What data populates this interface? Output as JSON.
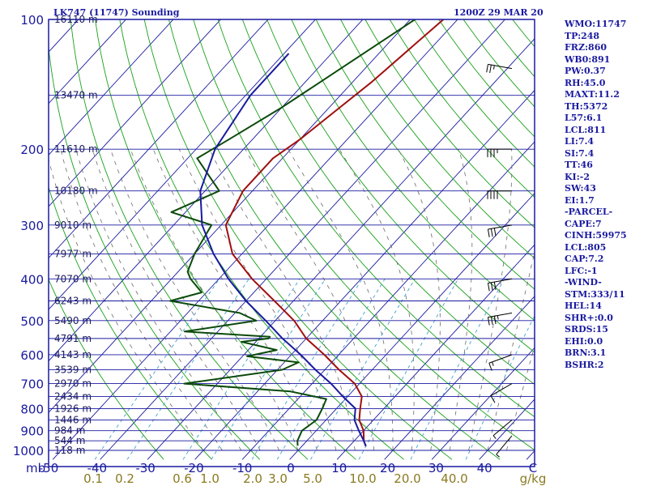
{
  "chart_data": {
    "type": "line",
    "title": "LK747 (11747) Sounding",
    "date": "1200Z 29 MAR 20",
    "x_axis": {
      "label": "mb",
      "temperature_ticks": [
        -50,
        -40,
        -30,
        -20,
        -10,
        0,
        10,
        20,
        30,
        40,
        "C"
      ],
      "mixing_ratio_ticks": [
        "0.1",
        "0.2",
        "0.6",
        "1.0",
        "2.0",
        "3.0",
        "5.0",
        "10.0",
        "20.0",
        "40.0",
        "g/kg"
      ]
    },
    "y_axis": {
      "pressure_ticks": [
        100,
        200,
        300,
        400,
        500,
        600,
        700,
        800,
        900,
        1000
      ],
      "scale": "log"
    },
    "height_labels": [
      {
        "p": 100,
        "label": "16110 m"
      },
      {
        "p": 150,
        "label": "13470 m"
      },
      {
        "p": 200,
        "label": "11610 m"
      },
      {
        "p": 250,
        "label": "10180 m"
      },
      {
        "p": 300,
        "label": "9010 m"
      },
      {
        "p": 350,
        "label": "7977 m"
      },
      {
        "p": 400,
        "label": "7070 m"
      },
      {
        "p": 450,
        "label": "6243 m"
      },
      {
        "p": 500,
        "label": "5490 m"
      },
      {
        "p": 550,
        "label": "4791 m"
      },
      {
        "p": 600,
        "label": "4143 m"
      },
      {
        "p": 650,
        "label": "3539 m"
      },
      {
        "p": 700,
        "label": "2970 m"
      },
      {
        "p": 750,
        "label": "2434 m"
      },
      {
        "p": 800,
        "label": "1926 m"
      },
      {
        "p": 850,
        "label": "1446 m"
      },
      {
        "p": 900,
        "label": "984 m"
      },
      {
        "p": 950,
        "label": "544 m"
      },
      {
        "p": 1000,
        "label": "118 m"
      }
    ],
    "series": [
      {
        "color": "#a01010",
        "points": [
          [
            -53,
            100
          ],
          [
            -56,
            140
          ],
          [
            -60,
            190
          ],
          [
            -62,
            210
          ],
          [
            -62,
            250
          ],
          [
            -59,
            300
          ],
          [
            -52,
            350
          ],
          [
            -43,
            400
          ],
          [
            -34,
            450
          ],
          [
            -26,
            500
          ],
          [
            -20,
            550
          ],
          [
            -13,
            600
          ],
          [
            -7,
            650
          ],
          [
            -1,
            700
          ],
          [
            3,
            750
          ],
          [
            5,
            800
          ],
          [
            7,
            850
          ],
          [
            10,
            900
          ],
          [
            12,
            950
          ],
          [
            13.5,
            978
          ]
        ]
      },
      {
        "color": "#0b4a0b",
        "points": [
          [
            -59,
            100
          ],
          [
            -70,
            160
          ],
          [
            -75,
            190
          ],
          [
            -78,
            210
          ],
          [
            -67,
            250
          ],
          [
            -73,
            280
          ],
          [
            -62,
            300
          ],
          [
            -60,
            350
          ],
          [
            -58,
            385
          ],
          [
            -56,
            400
          ],
          [
            -51,
            430
          ],
          [
            -56,
            450
          ],
          [
            -39,
            480
          ],
          [
            -34,
            500
          ],
          [
            -47,
            530
          ],
          [
            -28,
            545
          ],
          [
            -28,
            550
          ],
          [
            -33,
            560
          ],
          [
            -24,
            585
          ],
          [
            -29,
            605
          ],
          [
            -17,
            625
          ],
          [
            -19,
            650
          ],
          [
            -37,
            700
          ],
          [
            -13,
            730
          ],
          [
            -4,
            760
          ],
          [
            -3,
            800
          ],
          [
            -2,
            850
          ],
          [
            -3,
            900
          ],
          [
            -2,
            950
          ],
          [
            -1,
            975
          ]
        ]
      },
      {
        "color": "#1a1aa0",
        "points": [
          [
            -79,
            120
          ],
          [
            -79,
            150
          ],
          [
            -76,
            200
          ],
          [
            -71,
            250
          ],
          [
            -64,
            300
          ],
          [
            -56,
            350
          ],
          [
            -48,
            400
          ],
          [
            -40,
            450
          ],
          [
            -32,
            500
          ],
          [
            -25,
            550
          ],
          [
            -18,
            600
          ],
          [
            -12,
            650
          ],
          [
            -6,
            700
          ],
          [
            -1,
            750
          ],
          [
            4,
            800
          ],
          [
            6,
            850
          ],
          [
            9,
            900
          ],
          [
            12,
            950
          ],
          [
            13.5,
            978
          ]
        ]
      }
    ],
    "wind_barbs": [
      {
        "p": 130,
        "dir": 280,
        "kt": 25
      },
      {
        "p": 200,
        "dir": 270,
        "kt": 35
      },
      {
        "p": 250,
        "dir": 270,
        "kt": 40
      },
      {
        "p": 300,
        "dir": 260,
        "kt": 30
      },
      {
        "p": 400,
        "dir": 260,
        "kt": 30
      },
      {
        "p": 480,
        "dir": 260,
        "kt": 35
      },
      {
        "p": 600,
        "dir": 250,
        "kt": 15
      },
      {
        "p": 700,
        "dir": 240,
        "kt": 10
      },
      {
        "p": 850,
        "dir": 230,
        "kt": 5
      },
      {
        "p": 925,
        "dir": 220,
        "kt": 5
      }
    ],
    "indices": [
      "WMO:11747",
      "TP:248",
      "FRZ:860",
      "WB0:891",
      "PW:0.37",
      "RH:45.0",
      "MAXT:11.2",
      "TH:5372",
      "L57:6.1",
      "LCL:811",
      "LI:7.4",
      "SI:7.4",
      "TT:46",
      "KI:-2",
      "SW:43",
      "EI:1.7",
      "-PARCEL-",
      "CAPE:7",
      "CINH:59975",
      "LCL:805",
      "CAP:7.2",
      "LFC:-1",
      "-WIND-",
      "STM:333/11",
      "HEL:14",
      "SHR+:0.0",
      "SRDS:15",
      "EHI:0.0",
      "BRN:3.1",
      "BSHR:2"
    ],
    "colors": {
      "frame": "#1a1aa0",
      "isotherm": "#1a1aa0",
      "dry_adiabat": "#18a018",
      "moist_adiabat": "#6a6a6a",
      "mixing_ratio": "#40a0d0",
      "tick_label": "#1a1aa0",
      "mixing_ratio_label": "#8a7a20"
    }
  }
}
